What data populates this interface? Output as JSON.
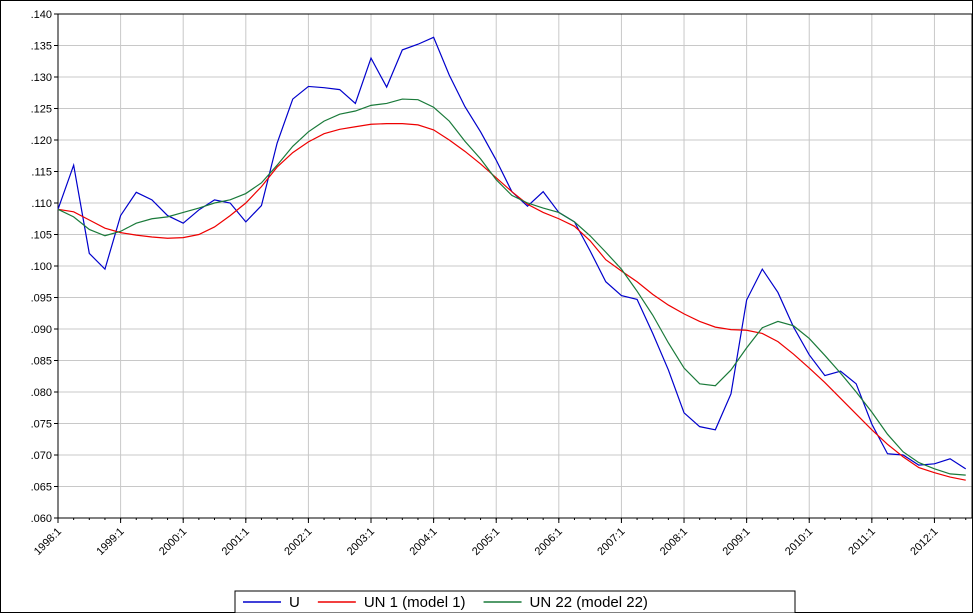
{
  "chart_data": {
    "type": "line",
    "x": [
      1998,
      1998.25,
      1998.5,
      1998.75,
      1999,
      1999.25,
      1999.5,
      1999.75,
      2000,
      2000.25,
      2000.5,
      2000.75,
      2001,
      2001.25,
      2001.5,
      2001.75,
      2002,
      2002.25,
      2002.5,
      2002.75,
      2003,
      2003.25,
      2003.5,
      2003.75,
      2004,
      2004.25,
      2004.5,
      2004.75,
      2005,
      2005.25,
      2005.5,
      2005.75,
      2006,
      2006.25,
      2006.5,
      2006.75,
      2007,
      2007.25,
      2007.5,
      2007.75,
      2008,
      2008.25,
      2008.5,
      2008.75,
      2009,
      2009.25,
      2009.5,
      2009.75,
      2010,
      2010.25,
      2010.5,
      2010.75,
      2011,
      2011.25,
      2011.5,
      2011.75,
      2012,
      2012.25,
      2012.5
    ],
    "series": [
      {
        "name": "U",
        "color": "#0000cc",
        "values": [
          0.109,
          0.116,
          0.102,
          0.0995,
          0.108,
          0.1117,
          0.1105,
          0.108,
          0.1068,
          0.1089,
          0.1105,
          0.11,
          0.107,
          0.1096,
          0.1195,
          0.1265,
          0.1285,
          0.1283,
          0.128,
          0.1258,
          0.133,
          0.1284,
          0.1343,
          0.1352,
          0.1363,
          0.1303,
          0.1253,
          0.1213,
          0.1168,
          0.1118,
          0.1095,
          0.1118,
          0.1085,
          0.107,
          0.1024,
          0.0975,
          0.0953,
          0.0947,
          0.0893,
          0.0835,
          0.0767,
          0.0745,
          0.074,
          0.0797,
          0.0946,
          0.0995,
          0.0958,
          0.0903,
          0.0859,
          0.0826,
          0.0833,
          0.0813,
          0.0749,
          0.0702,
          0.07,
          0.0684,
          0.0686,
          0.0694,
          0.0678
        ]
      },
      {
        "name": "UN 1 (model 1)",
        "color": "#ee0000",
        "values": [
          0.109,
          0.1086,
          0.1073,
          0.106,
          0.1053,
          0.1049,
          0.1046,
          0.1044,
          0.1045,
          0.105,
          0.1062,
          0.108,
          0.11,
          0.1126,
          0.1157,
          0.118,
          0.1197,
          0.121,
          0.1217,
          0.1221,
          0.1225,
          0.1226,
          0.1226,
          0.1224,
          0.1216,
          0.12,
          0.1182,
          0.1162,
          0.114,
          0.1118,
          0.1098,
          0.1085,
          0.1075,
          0.1063,
          0.104,
          0.101,
          0.0992,
          0.0975,
          0.0955,
          0.0938,
          0.0924,
          0.0912,
          0.0903,
          0.0899,
          0.0898,
          0.0893,
          0.088,
          0.086,
          0.0838,
          0.0815,
          0.079,
          0.0765,
          0.074,
          0.0717,
          0.0697,
          0.068,
          0.0672,
          0.0665,
          0.066
        ]
      },
      {
        "name": "UN 22 (model 22)",
        "color": "#1a7a3a",
        "values": [
          0.109,
          0.1078,
          0.1058,
          0.1048,
          0.1055,
          0.1068,
          0.1075,
          0.1078,
          0.1085,
          0.1092,
          0.11,
          0.1105,
          0.1115,
          0.1132,
          0.116,
          0.119,
          0.1213,
          0.123,
          0.1241,
          0.1246,
          0.1255,
          0.1258,
          0.1265,
          0.1264,
          0.1252,
          0.123,
          0.1198,
          0.117,
          0.1137,
          0.1112,
          0.11,
          0.1092,
          0.1085,
          0.107,
          0.1048,
          0.1022,
          0.0995,
          0.096,
          0.0922,
          0.0878,
          0.0838,
          0.0813,
          0.081,
          0.0835,
          0.087,
          0.0902,
          0.0912,
          0.0905,
          0.0885,
          0.0858,
          0.083,
          0.08,
          0.0768,
          0.0733,
          0.0705,
          0.0688,
          0.0678,
          0.067,
          0.0668
        ]
      }
    ],
    "xlim": [
      1998,
      2012.6
    ],
    "xticks": [
      {
        "value": 1998,
        "label": "1998:1"
      },
      {
        "value": 1999,
        "label": "1999:1"
      },
      {
        "value": 2000,
        "label": "2000:1"
      },
      {
        "value": 2001,
        "label": "2001:1"
      },
      {
        "value": 2002,
        "label": "2002:1"
      },
      {
        "value": 2003,
        "label": "2003:1"
      },
      {
        "value": 2004,
        "label": "2004:1"
      },
      {
        "value": 2005,
        "label": "2005:1"
      },
      {
        "value": 2006,
        "label": "2006:1"
      },
      {
        "value": 2007,
        "label": "2007:1"
      },
      {
        "value": 2008,
        "label": "2008:1"
      },
      {
        "value": 2009,
        "label": "2009:1"
      },
      {
        "value": 2010,
        "label": "2010:1"
      },
      {
        "value": 2011,
        "label": "2011:1"
      },
      {
        "value": 2012,
        "label": "2012:1"
      }
    ],
    "ylim": [
      0.06,
      0.14
    ],
    "yticks": [
      {
        "value": 0.06,
        "label": ".060"
      },
      {
        "value": 0.065,
        "label": ".065"
      },
      {
        "value": 0.07,
        "label": ".070"
      },
      {
        "value": 0.075,
        "label": ".075"
      },
      {
        "value": 0.08,
        "label": ".080"
      },
      {
        "value": 0.085,
        "label": ".085"
      },
      {
        "value": 0.09,
        "label": ".090"
      },
      {
        "value": 0.095,
        "label": ".095"
      },
      {
        "value": 0.1,
        "label": ".100"
      },
      {
        "value": 0.105,
        "label": ".105"
      },
      {
        "value": 0.11,
        "label": ".110"
      },
      {
        "value": 0.115,
        "label": ".115"
      },
      {
        "value": 0.12,
        "label": ".120"
      },
      {
        "value": 0.125,
        "label": ".125"
      },
      {
        "value": 0.13,
        "label": ".130"
      },
      {
        "value": 0.135,
        "label": ".135"
      },
      {
        "value": 0.14,
        "label": ".140"
      }
    ],
    "grid": true,
    "legend": "bottom"
  }
}
